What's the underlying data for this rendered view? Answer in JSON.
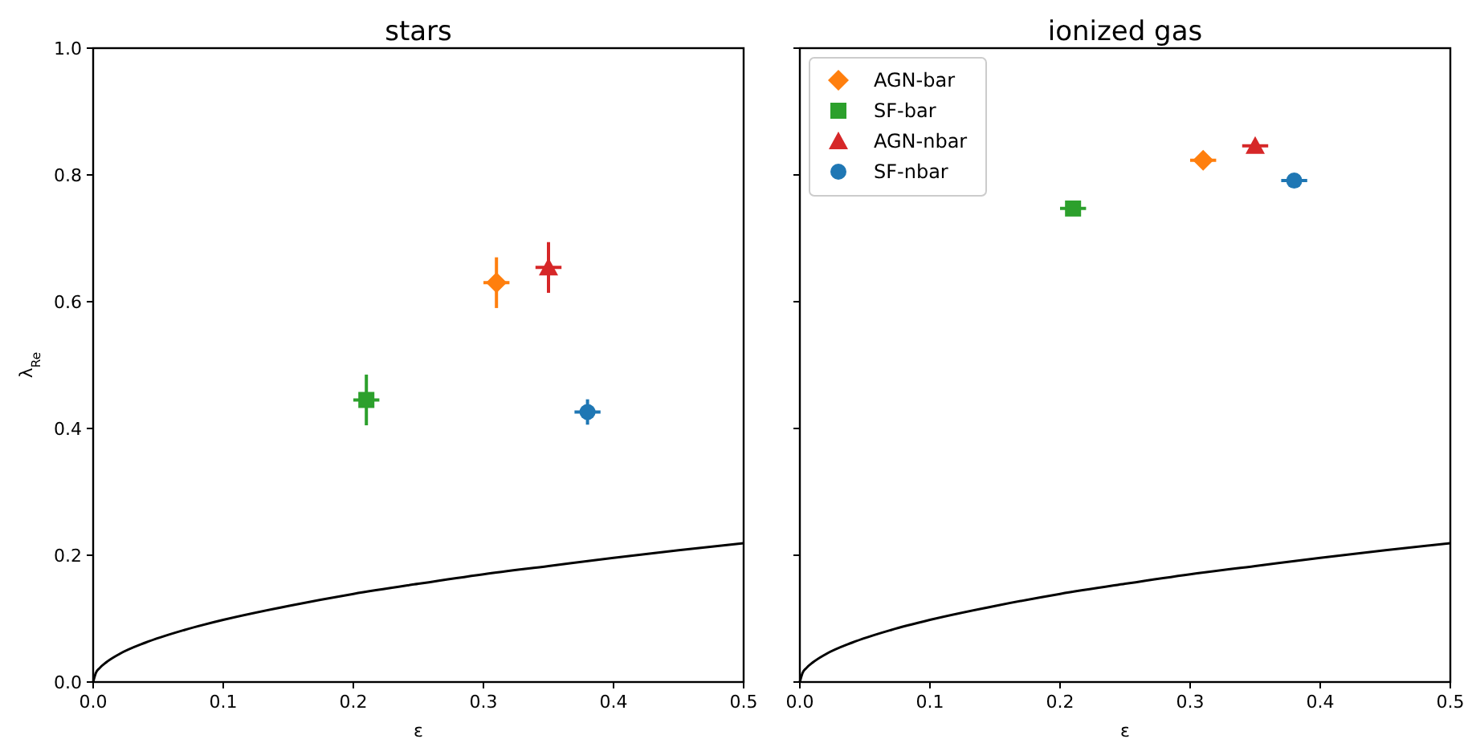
{
  "chart_data": [
    {
      "type": "scatter",
      "title": "stars",
      "xlabel": "ε",
      "ylabel": "λ$_{Re}$",
      "xlim": [
        0,
        0.5
      ],
      "ylim": [
        0,
        1
      ],
      "xticks": [
        {
          "value": 0,
          "label": "0.0"
        },
        {
          "value": 0.1,
          "label": "0.1"
        },
        {
          "value": 0.2,
          "label": "0.2"
        },
        {
          "value": 0.3,
          "label": "0.3"
        },
        {
          "value": 0.4,
          "label": "0.4"
        },
        {
          "value": 0.5,
          "label": "0.5"
        }
      ],
      "yticks": [
        {
          "value": 0,
          "label": "0.0"
        },
        {
          "value": 0.2,
          "label": "0.2"
        },
        {
          "value": 0.4,
          "label": "0.4"
        },
        {
          "value": 0.6,
          "label": "0.6"
        },
        {
          "value": 0.8,
          "label": "0.8"
        },
        {
          "value": 1,
          "label": "1.0"
        }
      ],
      "series": [
        {
          "type": "line",
          "color": "#000000",
          "x": [
            0,
            0.002,
            0.005,
            0.01,
            0.02,
            0.04,
            0.07,
            0.1,
            0.15,
            0.2,
            0.25,
            0.3,
            0.35,
            0.4,
            0.45,
            0.5
          ],
          "values": [
            0,
            0.014,
            0.022,
            0.031,
            0.044,
            0.062,
            0.082,
            0.098,
            0.12,
            0.139,
            0.155,
            0.17,
            0.183,
            0.196,
            0.208,
            0.219
          ]
        },
        {
          "color": "#ff7f0e",
          "marker": "diamond",
          "x": [
            0.31
          ],
          "values": [
            0.63
          ],
          "errors": [
            0.04
          ],
          "xerrors": [
            0.01
          ]
        },
        {
          "color": "#2ca02c",
          "marker": "square",
          "x": [
            0.21
          ],
          "values": [
            0.445
          ],
          "errors": [
            0.04
          ],
          "xerrors": [
            0.01
          ]
        },
        {
          "color": "#d62728",
          "marker": "triangle",
          "x": [
            0.35
          ],
          "values": [
            0.654
          ],
          "errors": [
            0.04
          ],
          "xerrors": [
            0.01
          ]
        },
        {
          "color": "#1f77b4",
          "marker": "circle",
          "x": [
            0.38
          ],
          "values": [
            0.426
          ],
          "errors": [
            0.02
          ],
          "xerrors": [
            0.01
          ]
        }
      ]
    },
    {
      "type": "scatter",
      "title": "ionized gas",
      "xlabel": "ε",
      "xlim": [
        0,
        0.5
      ],
      "ylim": [
        0,
        1
      ],
      "tick_labels": "x",
      "legend": "top left",
      "xticks": [
        {
          "value": 0,
          "label": "0.0"
        },
        {
          "value": 0.1,
          "label": "0.1"
        },
        {
          "value": 0.2,
          "label": "0.2"
        },
        {
          "value": 0.3,
          "label": "0.3"
        },
        {
          "value": 0.4,
          "label": "0.4"
        },
        {
          "value": 0.5,
          "label": "0.5"
        }
      ],
      "yticks": [
        {
          "value": 0,
          "label": null
        },
        {
          "value": 0.2,
          "label": null
        },
        {
          "value": 0.4,
          "label": null
        },
        {
          "value": 0.6,
          "label": null
        },
        {
          "value": 0.8,
          "label": null
        },
        {
          "value": 1,
          "label": null
        }
      ],
      "series": [
        {
          "type": "line",
          "color": "#000000",
          "x": [
            0,
            0.002,
            0.005,
            0.01,
            0.02,
            0.04,
            0.07,
            0.1,
            0.15,
            0.2,
            0.25,
            0.3,
            0.35,
            0.4,
            0.45,
            0.5
          ],
          "values": [
            0,
            0.014,
            0.022,
            0.031,
            0.044,
            0.062,
            0.082,
            0.098,
            0.12,
            0.139,
            0.155,
            0.17,
            0.183,
            0.196,
            0.208,
            0.219
          ]
        },
        {
          "name": "AGN-bar",
          "color": "#ff7f0e",
          "marker": "diamond",
          "x": [
            0.31
          ],
          "values": [
            0.823
          ],
          "xerrors": [
            0.01
          ]
        },
        {
          "name": "SF-bar",
          "color": "#2ca02c",
          "marker": "square",
          "x": [
            0.21
          ],
          "values": [
            0.747
          ],
          "xerrors": [
            0.01
          ]
        },
        {
          "name": "AGN-nbar",
          "color": "#d62728",
          "marker": "triangle",
          "x": [
            0.35
          ],
          "values": [
            0.846
          ],
          "xerrors": [
            0.01
          ]
        },
        {
          "name": "SF-nbar",
          "color": "#1f77b4",
          "marker": "circle",
          "x": [
            0.38
          ],
          "values": [
            0.791
          ],
          "xerrors": [
            0.01
          ]
        }
      ]
    }
  ]
}
